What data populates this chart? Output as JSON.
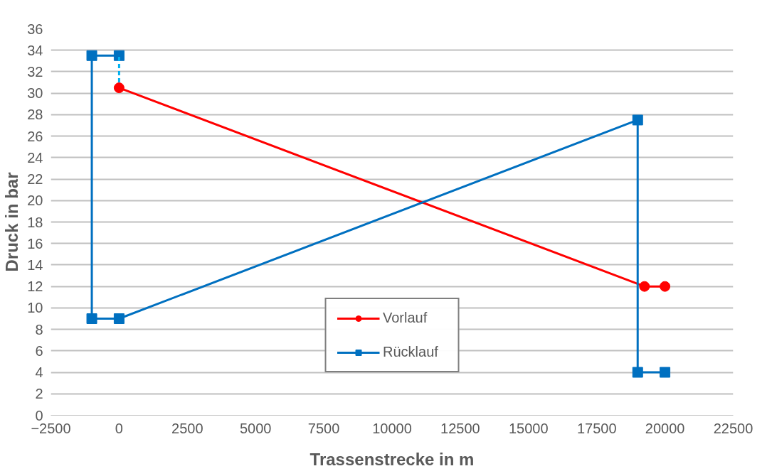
{
  "chart_data": {
    "type": "line",
    "xlabel": "Trassenstrecke in m",
    "ylabel": "Druck in bar",
    "xlim": [
      -2500,
      22500
    ],
    "xticks": [
      -2500,
      0,
      2500,
      5000,
      7500,
      10000,
      12500,
      15000,
      17500,
      20000,
      22500
    ],
    "ylim": [
      0,
      36
    ],
    "yticks": [
      0,
      2,
      4,
      6,
      8,
      10,
      12,
      14,
      16,
      18,
      20,
      22,
      24,
      26,
      28,
      30,
      32,
      34,
      36
    ],
    "grid": "y",
    "legend": "bottom",
    "series": [
      {
        "name": "Vorlauf",
        "color": "#ff0000",
        "marker": "circle",
        "x": [
          0,
          19250,
          20000
        ],
        "values": [
          30.5,
          12,
          12
        ]
      },
      {
        "name": "Rücklauf",
        "color": "#0070c0",
        "marker": "square",
        "x": [
          0,
          -1000,
          -1000,
          0,
          19000,
          19000,
          20000
        ],
        "values": [
          33.5,
          33.5,
          9,
          9,
          27.5,
          4,
          4
        ]
      },
      {
        "color": "#00b0f0",
        "marker": "none",
        "line_style": "dashed",
        "x": [
          0,
          0
        ],
        "values": [
          31,
          33.5
        ]
      }
    ]
  }
}
